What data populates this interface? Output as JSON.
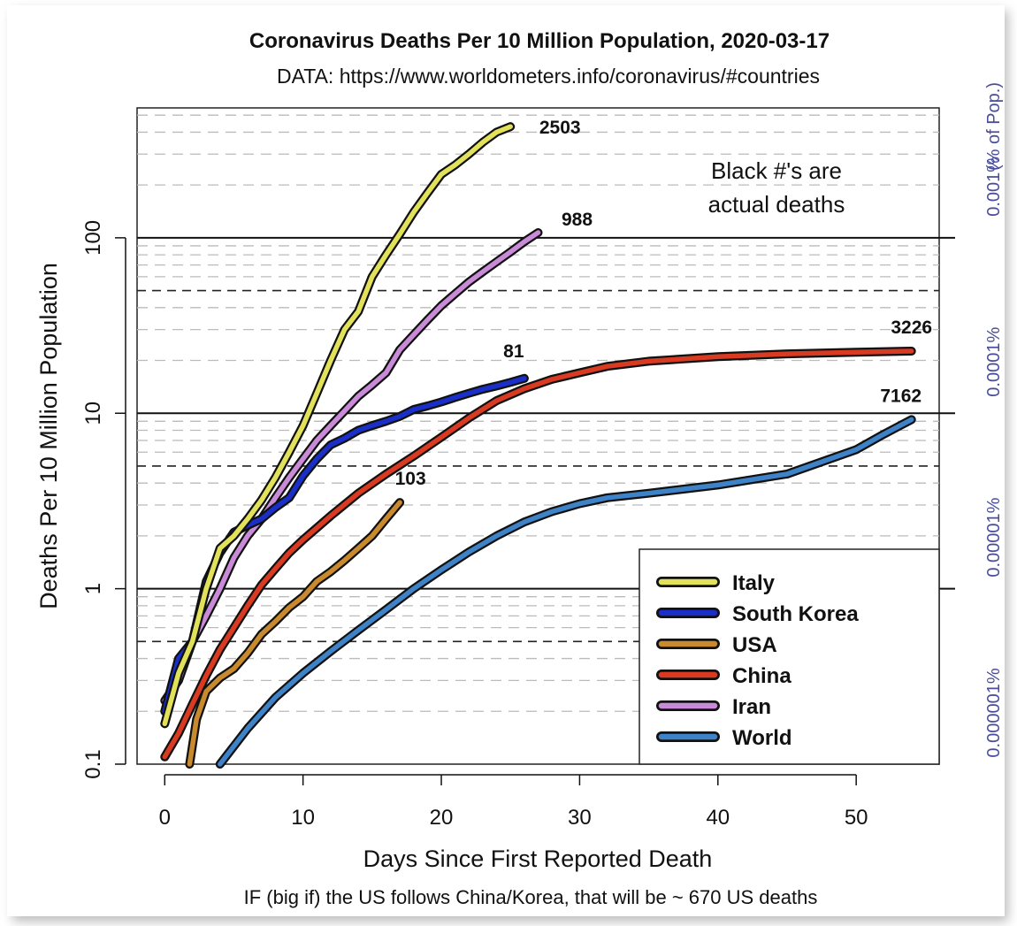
{
  "chart_data": {
    "type": "line",
    "title": "Coronavirus Deaths Per 10 Million Population, 2020-03-17",
    "subtitle": "DATA: https://www.worldometers.info/coronavirus/#countries",
    "xlabel": "Days Since First Reported Death",
    "ylabel": "Deaths Per 10 Million Population",
    "right_axis_label": "(% of Pop.)",
    "annotation": [
      "Black #'s are",
      "actual deaths"
    ],
    "footnote": "IF (big if) the US follows China/Korea, that will be ~ 670 US deaths",
    "y_scale": "log",
    "xlim": [
      -2,
      56
    ],
    "ylim": [
      0.1,
      550
    ],
    "x_ticks": [
      0,
      10,
      20,
      30,
      40,
      50
    ],
    "x_tick_labels": [
      "0",
      "10",
      "20",
      "30",
      "40",
      "50"
    ],
    "y_ticks": [
      0.1,
      1,
      10,
      100
    ],
    "y_tick_labels": [
      "0.1",
      "1",
      "10",
      "100"
    ],
    "right_ticks": [
      {
        "y": 0.1,
        "label": "0.000001%"
      },
      {
        "y": 1,
        "label": "0.00001%"
      },
      {
        "y": 10,
        "label": "0.0001%"
      },
      {
        "y": 100,
        "label": "0.001%"
      }
    ],
    "gridlines": {
      "solid": [
        1,
        10,
        100
      ],
      "dashed_major": [
        0.5,
        5,
        50
      ],
      "dashed_minor": true
    },
    "legend": {
      "position": "bottom-right"
    },
    "series": [
      {
        "name": "Italy",
        "color": "#e2e25a",
        "end_label": "2503",
        "x": [
          0,
          1,
          2,
          3,
          4,
          5,
          6,
          7,
          8,
          9,
          10,
          11,
          12,
          13,
          14,
          15,
          16,
          17,
          18,
          19,
          20,
          21,
          22,
          23,
          24,
          25
        ],
        "y": [
          0.17,
          0.33,
          0.5,
          1.0,
          1.7,
          2.0,
          2.5,
          3.2,
          4.3,
          6.0,
          8.5,
          13,
          20,
          30,
          38,
          60,
          80,
          105,
          140,
          180,
          230,
          260,
          300,
          350,
          400,
          430
        ]
      },
      {
        "name": "South Korea",
        "color": "#1a2fc8",
        "end_label": "81",
        "x": [
          0,
          1,
          2,
          3,
          4,
          5,
          6,
          7,
          8,
          9,
          10,
          11,
          12,
          13,
          14,
          15,
          16,
          17,
          18,
          19,
          20,
          21,
          22,
          23,
          24,
          25,
          26
        ],
        "y": [
          0.2,
          0.4,
          0.5,
          1.1,
          1.6,
          2.1,
          2.3,
          2.5,
          2.9,
          3.3,
          4.4,
          5.5,
          6.6,
          7.2,
          8.0,
          8.5,
          9.0,
          9.6,
          10.5,
          11.0,
          11.6,
          12.3,
          13.0,
          13.7,
          14.3,
          15.0,
          15.8
        ]
      },
      {
        "name": "USA",
        "color": "#c98a2e",
        "end_label": "103",
        "x": [
          1.8,
          2.3,
          3,
          4,
          5,
          6,
          7,
          8,
          9,
          10,
          11,
          12,
          13,
          14,
          15,
          16,
          17
        ],
        "y": [
          0.1,
          0.18,
          0.26,
          0.31,
          0.35,
          0.43,
          0.55,
          0.65,
          0.78,
          0.9,
          1.1,
          1.25,
          1.45,
          1.7,
          2.0,
          2.5,
          3.1
        ]
      },
      {
        "name": "China",
        "color": "#d83a22",
        "end_label": "3226",
        "x": [
          0,
          1,
          2,
          3,
          4,
          5,
          6,
          7,
          8,
          9,
          10,
          12,
          14,
          16,
          18,
          20,
          22,
          24,
          26,
          28,
          30,
          32,
          35,
          40,
          45,
          50,
          54
        ],
        "y": [
          0.11,
          0.15,
          0.22,
          0.32,
          0.45,
          0.6,
          0.8,
          1.05,
          1.3,
          1.6,
          1.9,
          2.6,
          3.5,
          4.5,
          5.7,
          7.3,
          9.4,
          11.8,
          13.8,
          15.6,
          17.0,
          18.5,
          19.8,
          21.0,
          21.8,
          22.3,
          22.6
        ]
      },
      {
        "name": "Iran",
        "color": "#c98ad8",
        "end_label": "988",
        "x": [
          0,
          1,
          2,
          3,
          4,
          5,
          6,
          7,
          8,
          9,
          10,
          11,
          12,
          13,
          14,
          15,
          16,
          17,
          18,
          19,
          20,
          21,
          22,
          23,
          24,
          25,
          26,
          27
        ],
        "y": [
          0.23,
          0.3,
          0.5,
          0.7,
          1.0,
          1.5,
          2.0,
          2.5,
          3.3,
          4.3,
          5.5,
          7.0,
          8.5,
          10.3,
          12.5,
          14.5,
          17.0,
          23,
          28,
          34,
          41,
          48,
          56,
          64,
          73,
          83,
          95,
          107
        ]
      },
      {
        "name": "World",
        "color": "#3e82c8",
        "end_label": "7162",
        "x": [
          4,
          6,
          8,
          10,
          12,
          14,
          16,
          18,
          20,
          22,
          24,
          26,
          28,
          30,
          32,
          35,
          40,
          45,
          50,
          52,
          54
        ],
        "y": [
          0.1,
          0.16,
          0.24,
          0.33,
          0.44,
          0.58,
          0.76,
          1.0,
          1.28,
          1.62,
          2.0,
          2.4,
          2.75,
          3.05,
          3.3,
          3.5,
          3.9,
          4.5,
          6.2,
          7.6,
          9.2
        ]
      }
    ]
  }
}
